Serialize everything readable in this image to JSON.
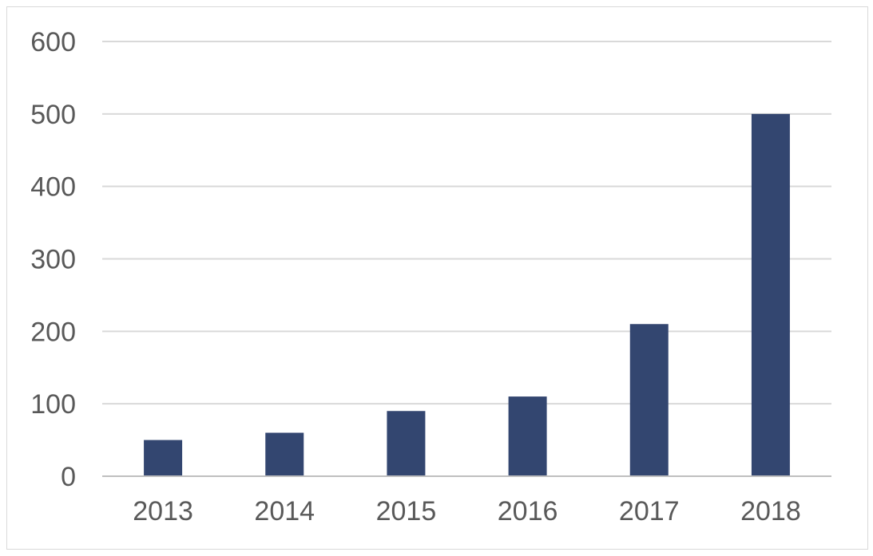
{
  "chart_data": {
    "type": "bar",
    "categories": [
      "2013",
      "2014",
      "2015",
      "2016",
      "2017",
      "2018"
    ],
    "values": [
      50,
      60,
      90,
      110,
      210,
      500
    ],
    "title": "",
    "xlabel": "",
    "ylabel": "",
    "ylim": [
      0,
      600
    ],
    "yticks": [
      "0",
      "100",
      "200",
      "300",
      "400",
      "500",
      "600"
    ],
    "grid": true,
    "legend": "none",
    "bar_color": "#334670"
  }
}
